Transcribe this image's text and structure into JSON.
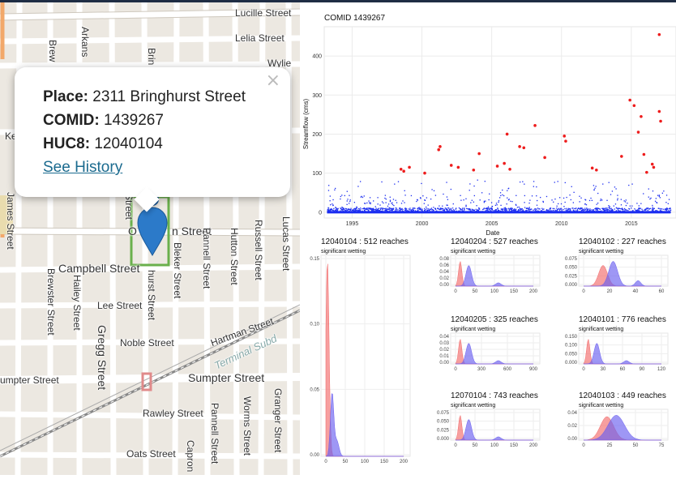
{
  "map": {
    "streets": {
      "lucille": "Lucille Street",
      "lelia": "Lelia Street",
      "wylie": "Wylie",
      "brewster_top": "Brew",
      "arkansas": "Arkans",
      "bringhurst_top": "Brin",
      "ke": "Ke",
      "james": "James Street",
      "street_mid": "Street",
      "o_street": "O",
      "n_street": "n Street",
      "campbell": "Campbell Street",
      "brewster": "Brewster Street",
      "hailey": "Hailey Street",
      "lee": "Lee Street",
      "gregg": "Gregg Street",
      "noble": "Noble Street",
      "bringhurst": "hurst Street",
      "bleker": "Bleker Street",
      "pannell": "Pannell Street",
      "hutton": "Hutton Street",
      "russell": "Russell Street",
      "lucas": "Lucas Street",
      "hartman": "Hartman Street",
      "terminal": "Terminal Subd",
      "sumpter_left": "umpter Street",
      "sumpter": "Sumpter Street",
      "rawley": "Rawley Street",
      "pannell_bottom": "Pannell Street",
      "worms": "Worms Street",
      "granger": "Granger Street",
      "oats": "Oats Street",
      "capron": "Capron"
    }
  },
  "popup": {
    "place_label": "Place:",
    "place_value": "2311 Bringhurst Street",
    "comid_label": "COMID:",
    "comid_value": "1439267",
    "huc8_label": "HUC8:",
    "huc8_value": "12040104",
    "link": "See History",
    "close": "×"
  },
  "main_chart": {
    "title": "COMID 1439267",
    "ylabel": "Streamflow (cms)",
    "xlabel": "Date",
    "xticks": [
      "1995",
      "2000",
      "2005",
      "2010",
      "2015"
    ],
    "yticks": [
      "0",
      "100",
      "200",
      "300",
      "400"
    ]
  },
  "density_subtitle": "significant wetting",
  "panels": [
    {
      "huc": "12040104",
      "sep": " :  ",
      "reaches": "512 reaches",
      "yticks": [
        "0.00",
        "0.05",
        "0.10",
        "0.15"
      ],
      "xticks": [
        "0",
        "50",
        "100",
        "150",
        "200"
      ]
    },
    {
      "huc": "12040204",
      "sep": " :  ",
      "reaches": "527 reaches",
      "yticks": [
        "0.00",
        "0.02",
        "0.04",
        "0.06",
        "0.08"
      ],
      "xticks": [
        "0",
        "50",
        "100",
        "150",
        "200"
      ]
    },
    {
      "huc": "12040102",
      "sep": " :  ",
      "reaches": "227 reaches",
      "yticks": [
        "0.000",
        "0.025",
        "0.050",
        "0.075"
      ],
      "xticks": [
        "0",
        "20",
        "40",
        "60"
      ]
    },
    {
      "huc": "12040205",
      "sep": " :  ",
      "reaches": "325 reaches",
      "yticks": [
        "0.00",
        "0.01",
        "0.02",
        "0.03",
        "0.04"
      ],
      "xticks": [
        "0",
        "300",
        "600",
        "900"
      ]
    },
    {
      "huc": "12040101",
      "sep": " :  ",
      "reaches": "776 reaches",
      "yticks": [
        "0.000",
        "0.050",
        "0.100",
        "0.150"
      ],
      "xticks": [
        "0",
        "30",
        "60",
        "90",
        "120"
      ]
    },
    {
      "huc": "12070104",
      "sep": " :  ",
      "reaches": "743 reaches",
      "yticks": [
        "0.000",
        "0.025",
        "0.050",
        "0.075"
      ],
      "xticks": [
        "0",
        "50",
        "100",
        "150",
        "200"
      ]
    },
    {
      "huc": "12040103",
      "sep": " :  ",
      "reaches": "449 reaches",
      "yticks": [
        "0.00",
        "0.02",
        "0.04"
      ],
      "xticks": [
        "0",
        "25",
        "50",
        "75"
      ]
    }
  ],
  "colors": {
    "points_blue": "#1a2cf0",
    "points_red": "#ee1c1c",
    "density_red": "#f26b6b",
    "density_blue": "#6a5ff0",
    "marker": "#2c7ac9",
    "highlight": "#6ab04c"
  }
}
